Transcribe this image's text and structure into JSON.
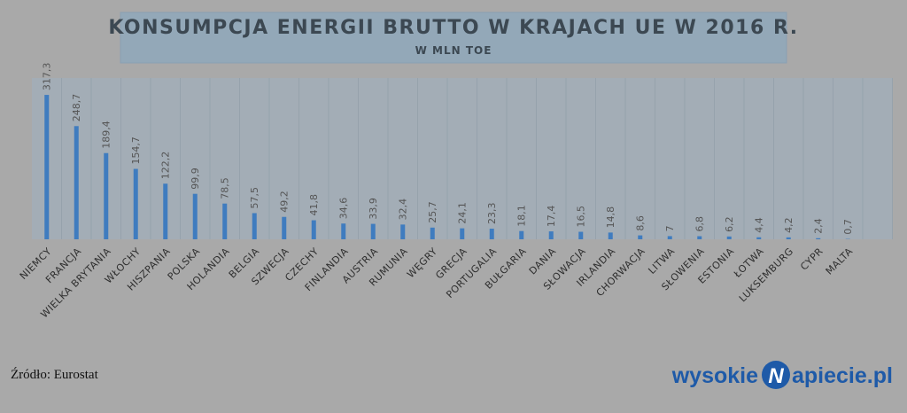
{
  "chart_data": {
    "type": "bar",
    "title": "KONSUMPCJA ENERGII BRUTTO W KRAJACH UE W 2016 R.",
    "subtitle": "W MLN TOE",
    "categories": [
      "NIEMCY",
      "FRANCJA",
      "WIELKA BRYTANIA",
      "WŁOCHY",
      "HISZPANIA",
      "POLSKA",
      "HOLANDIA",
      "BELGIA",
      "SZWECJA",
      "CZECHY",
      "FINLANDIA",
      "AUSTRIA",
      "RUMUNIA",
      "WĘGRY",
      "GRECJA",
      "PORTUGALIA",
      "BUŁGARIA",
      "DANIA",
      "SŁOWACJA",
      "IRLANDIA",
      "CHORWACJA",
      "LITWA",
      "SŁOWENIA",
      "ESTONIA",
      "ŁOTWA",
      "LUKSEMBURG",
      "CYPR",
      "MALTA"
    ],
    "values": [
      317.3,
      248.7,
      189.4,
      154.7,
      122.2,
      99.9,
      78.5,
      57.5,
      49.2,
      41.8,
      34.6,
      33.9,
      32.4,
      25.7,
      24.1,
      23.3,
      18.1,
      17.4,
      16.5,
      14.8,
      8.6,
      7,
      6.8,
      6.2,
      4.4,
      4.2,
      2.4,
      0.7
    ],
    "value_labels": [
      "317,3",
      "248,7",
      "189,4",
      "154,7",
      "122,2",
      "99,9",
      "78,5",
      "57,5",
      "49,2",
      "41,8",
      "34,6",
      "33,9",
      "32,4",
      "25,7",
      "24,1",
      "23,3",
      "18,1",
      "17,4",
      "16,5",
      "14,8",
      "8,6",
      "7",
      "6,8",
      "6,2",
      "4,4",
      "4,2",
      "2,4",
      "0,7"
    ],
    "color": "#3f7cbf"
  },
  "source": "Źródło: Eurostat",
  "logo": {
    "left": "wysokie",
    "mark": "N",
    "right": "apiecie.pl"
  }
}
